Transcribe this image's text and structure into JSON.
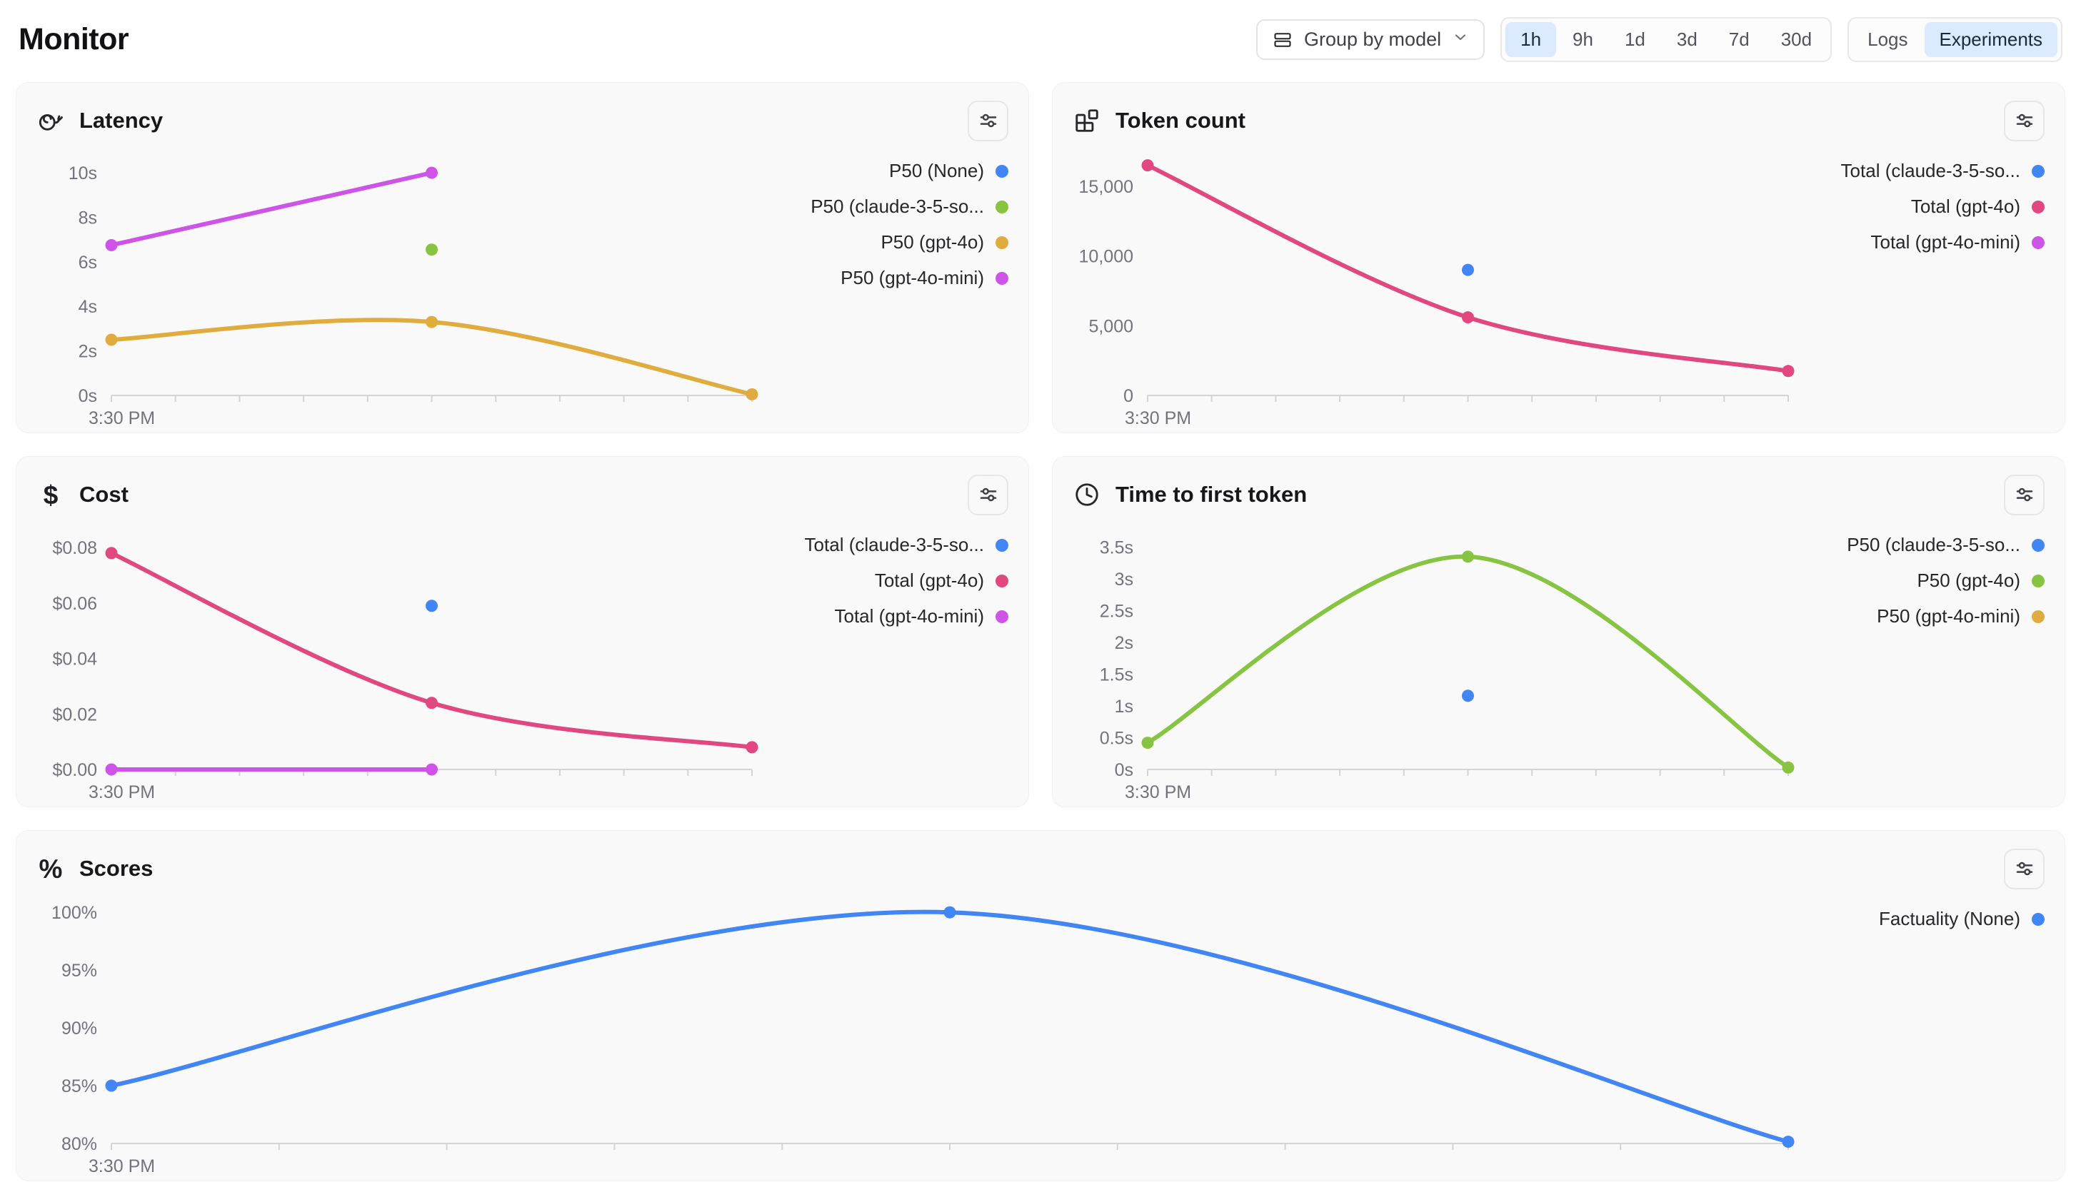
{
  "header": {
    "title": "Monitor",
    "group_by_label": "Group by model",
    "time_ranges": [
      "1h",
      "9h",
      "1d",
      "3d",
      "7d",
      "30d"
    ],
    "time_selected": "1h",
    "view_toggle": [
      "Logs",
      "Experiments"
    ],
    "view_selected": "Experiments"
  },
  "colors": {
    "blue": "#4285f4",
    "green": "#87c442",
    "amber": "#e0ac3e",
    "magenta": "#ce54e8",
    "pink": "#e0487f",
    "selected_bg": "#dbeafe",
    "axis": "#d4d4d8",
    "card_bg": "#f9f9fa"
  },
  "chart_data": [
    {
      "id": "latency",
      "type": "line",
      "title": "Latency",
      "icon": "snail-icon",
      "x_axis_label": "3:30 PM",
      "x_tick_count": 11,
      "ylim": [
        0,
        10.9
      ],
      "y_ticks": [
        {
          "v": 10,
          "label": "10s"
        },
        {
          "v": 8,
          "label": "8s"
        },
        {
          "v": 6,
          "label": "6s"
        },
        {
          "v": 4,
          "label": "4s"
        },
        {
          "v": 2,
          "label": "2s"
        },
        {
          "v": 0,
          "label": "0s"
        }
      ],
      "series": [
        {
          "name": "P50 (None)",
          "color": "#4285f4",
          "points": []
        },
        {
          "name": "P50 (claude-3-5-so...",
          "color": "#87c442",
          "points": [
            [
              0.5,
              6.55
            ]
          ]
        },
        {
          "name": "P50 (gpt-4o)",
          "color": "#e0ac3e",
          "points": [
            [
              0,
              2.5
            ],
            [
              0.5,
              3.3
            ],
            [
              1,
              0.05
            ]
          ]
        },
        {
          "name": "P50 (gpt-4o-mini)",
          "color": "#ce54e8",
          "points": [
            [
              0,
              6.75
            ],
            [
              0.5,
              10
            ]
          ]
        }
      ]
    },
    {
      "id": "token-count",
      "type": "line",
      "title": "Token count",
      "icon": "blocks-icon",
      "x_axis_label": "3:30 PM",
      "x_tick_count": 11,
      "ylim": [
        0,
        17400
      ],
      "y_ticks": [
        {
          "v": 15000,
          "label": "15,000"
        },
        {
          "v": 10000,
          "label": "10,000"
        },
        {
          "v": 5000,
          "label": "5,000"
        },
        {
          "v": 0,
          "label": "0"
        }
      ],
      "series": [
        {
          "name": "Total (claude-3-5-so...",
          "color": "#4285f4",
          "points": [
            [
              0.5,
              9000
            ]
          ]
        },
        {
          "name": "Total (gpt-4o)",
          "color": "#e0487f",
          "points": [
            [
              0,
              16500
            ],
            [
              0.5,
              5600
            ],
            [
              1,
              1750
            ]
          ]
        },
        {
          "name": "Total (gpt-4o-mini)",
          "color": "#ce54e8",
          "points": []
        }
      ]
    },
    {
      "id": "cost",
      "type": "line",
      "title": "Cost",
      "icon": "dollar-icon",
      "x_axis_label": "3:30 PM",
      "x_tick_count": 11,
      "ylim": [
        0,
        0.0875
      ],
      "y_ticks": [
        {
          "v": 0.08,
          "label": "$0.08"
        },
        {
          "v": 0.06,
          "label": "$0.06"
        },
        {
          "v": 0.04,
          "label": "$0.04"
        },
        {
          "v": 0.02,
          "label": "$0.02"
        },
        {
          "v": 0,
          "label": "$0.00"
        }
      ],
      "series": [
        {
          "name": "Total (claude-3-5-so...",
          "color": "#4285f4",
          "points": [
            [
              0.5,
              0.059
            ]
          ]
        },
        {
          "name": "Total (gpt-4o)",
          "color": "#e0487f",
          "points": [
            [
              0,
              0.078
            ],
            [
              0.5,
              0.024
            ],
            [
              1,
              0.008
            ]
          ]
        },
        {
          "name": "Total (gpt-4o-mini)",
          "color": "#ce54e8",
          "points": [
            [
              0,
              0
            ],
            [
              0.5,
              0
            ]
          ]
        }
      ]
    },
    {
      "id": "time-to-first-token",
      "type": "line",
      "title": "Time to first token",
      "icon": "clock-icon",
      "x_axis_label": "3:30 PM",
      "x_tick_count": 11,
      "ylim": [
        0,
        3.82
      ],
      "y_ticks": [
        {
          "v": 3.5,
          "label": "3.5s"
        },
        {
          "v": 3,
          "label": "3s"
        },
        {
          "v": 2.5,
          "label": "2.5s"
        },
        {
          "v": 2,
          "label": "2s"
        },
        {
          "v": 1.5,
          "label": "1.5s"
        },
        {
          "v": 1,
          "label": "1s"
        },
        {
          "v": 0.5,
          "label": "0.5s"
        },
        {
          "v": 0,
          "label": "0s"
        }
      ],
      "series": [
        {
          "name": "P50 (claude-3-5-so...",
          "color": "#4285f4",
          "points": [
            [
              0.5,
              1.16
            ]
          ]
        },
        {
          "name": "P50 (gpt-4o)",
          "color": "#87c442",
          "points": [
            [
              0,
              0.42
            ],
            [
              0.5,
              3.35
            ],
            [
              1,
              0.03
            ]
          ]
        },
        {
          "name": "P50 (gpt-4o-mini)",
          "color": "#e0ac3e",
          "points": []
        }
      ]
    },
    {
      "id": "scores",
      "type": "line",
      "title": "Scores",
      "icon": "percent-icon",
      "x_axis_label": "3:30 PM",
      "x_tick_count": 11,
      "ylim": [
        80,
        101
      ],
      "y_ticks": [
        {
          "v": 100,
          "label": "100%"
        },
        {
          "v": 95,
          "label": "95%"
        },
        {
          "v": 90,
          "label": "90%"
        },
        {
          "v": 85,
          "label": "85%"
        },
        {
          "v": 80,
          "label": "80%"
        }
      ],
      "series": [
        {
          "name": "Factuality (None)",
          "color": "#4285f4",
          "points": [
            [
              0,
              85
            ],
            [
              0.5,
              100
            ],
            [
              1,
              80.15
            ]
          ]
        }
      ]
    }
  ]
}
